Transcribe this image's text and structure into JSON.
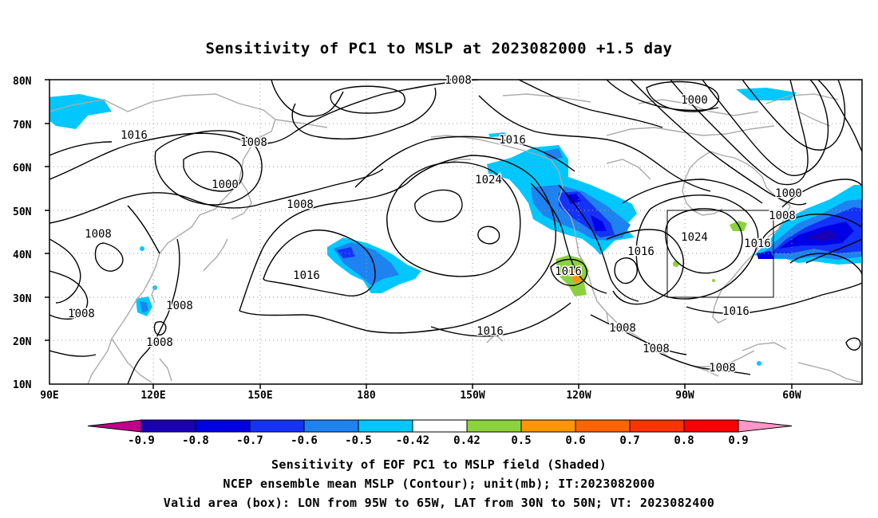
{
  "title": "Sensitivity of PC1 to MSLP at 2023082000 +1.5 day",
  "map": {
    "lat_labels": [
      "80N",
      "70N",
      "60N",
      "50N",
      "40N",
      "30N",
      "20N",
      "10N"
    ],
    "lon_labels": [
      "90E",
      "120E",
      "150E",
      "180",
      "150W",
      "120W",
      "90W",
      "60W"
    ],
    "box": {
      "lon_from": "95W",
      "lon_to": "65W",
      "lat_from": "30N",
      "lat_to": "50N"
    }
  },
  "contour_labels": [
    {
      "text": "1008"
    },
    {
      "text": "1000"
    },
    {
      "text": "1016"
    },
    {
      "text": "1008"
    },
    {
      "text": "1000"
    },
    {
      "text": "1016"
    },
    {
      "text": "1024"
    },
    {
      "text": "1008"
    },
    {
      "text": "1008"
    },
    {
      "text": "1016"
    },
    {
      "text": "1008"
    },
    {
      "text": "1024"
    },
    {
      "text": "1016"
    },
    {
      "text": "1016"
    },
    {
      "text": "1000"
    },
    {
      "text": "1008"
    },
    {
      "text": "1016"
    },
    {
      "text": "1008"
    },
    {
      "text": "1008"
    },
    {
      "text": "1008"
    },
    {
      "text": "1008"
    },
    {
      "text": "1016"
    },
    {
      "text": "1008"
    },
    {
      "text": "1016"
    }
  ],
  "colorbar": {
    "labels": [
      "-0.9",
      "-0.8",
      "-0.7",
      "-0.6",
      "-0.5",
      "-0.42",
      "0.42",
      "0.5",
      "0.6",
      "0.7",
      "0.8",
      "0.9"
    ],
    "colors": [
      "#c0008a",
      "#1a00b4",
      "#0000e6",
      "#1432fa",
      "#1e82f0",
      "#00c8ff",
      "#ffffff",
      "#8cd23c",
      "#ff9600",
      "#ff6400",
      "#ff3200",
      "#ff0000",
      "#ff96c8"
    ]
  },
  "footer": {
    "line1": "Sensitivity of EOF PC1 to MSLP field (Shaded)",
    "line2": "NCEP ensemble mean MSLP (Contour); unit(mb); IT:2023082000",
    "line3": "Valid area (box): LON from 95W to 65W, LAT from 30N to 50N; VT: 2023082400"
  }
}
